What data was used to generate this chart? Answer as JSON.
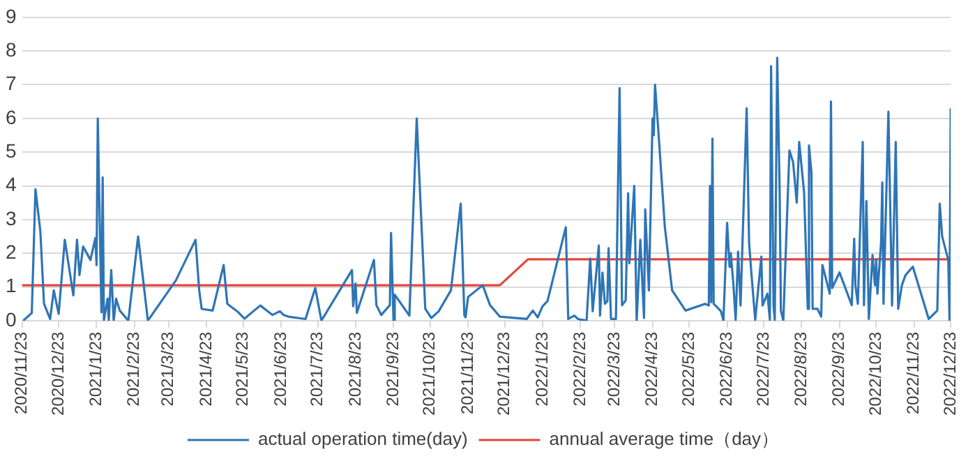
{
  "chart_data": {
    "type": "line",
    "x": [
      "2020-11-24",
      "2020-12-01",
      "2020-12-04",
      "2020-12-08",
      "2020-12-11",
      "2020-12-16",
      "2020-12-19",
      "2020-12-23",
      "2020-12-28",
      "2021-01-04",
      "2021-01-07",
      "2021-01-09",
      "2021-01-12",
      "2021-01-18",
      "2021-01-22",
      "2021-01-23",
      "2021-01-24",
      "2021-01-27",
      "2021-01-28",
      "2021-01-29",
      "2021-02-01",
      "2021-02-02",
      "2021-02-04",
      "2021-02-06",
      "2021-02-08",
      "2021-02-11",
      "2021-02-18",
      "2021-02-26",
      "2021-03-06",
      "2021-03-29",
      "2021-04-14",
      "2021-04-17",
      "2021-04-19",
      "2021-04-28",
      "2021-05-07",
      "2021-05-10",
      "2021-05-19",
      "2021-05-24",
      "2021-06-06",
      "2021-06-16",
      "2021-06-22",
      "2021-06-25",
      "2021-06-29",
      "2021-07-13",
      "2021-07-21",
      "2021-07-26",
      "2021-08-20",
      "2021-08-21",
      "2021-08-23",
      "2021-08-24",
      "2021-09-07",
      "2021-09-09",
      "2021-09-13",
      "2021-09-20",
      "2021-09-21",
      "2021-09-23",
      "2021-09-24",
      "2021-10-06",
      "2021-10-12",
      "2021-10-19",
      "2021-10-24",
      "2021-10-30",
      "2021-11-09",
      "2021-11-17",
      "2021-11-20",
      "2021-11-21",
      "2021-11-23",
      "2021-12-05",
      "2021-12-11",
      "2021-12-19",
      "2022-01-10",
      "2022-01-15",
      "2022-01-19",
      "2022-01-23",
      "2022-01-27",
      "2022-02-11",
      "2022-02-13",
      "2022-02-18",
      "2022-02-21",
      "2022-02-28",
      "2022-03-03",
      "2022-03-05",
      "2022-03-10",
      "2022-03-11",
      "2022-03-13",
      "2022-03-15",
      "2022-03-17",
      "2022-03-18",
      "2022-03-20",
      "2022-03-24",
      "2022-03-27",
      "2022-03-29",
      "2022-04-01",
      "2022-04-03",
      "2022-04-04",
      "2022-04-08",
      "2022-04-10",
      "2022-04-13",
      "2022-04-16",
      "2022-04-17",
      "2022-04-20",
      "2022-04-23",
      "2022-04-24",
      "2022-04-25",
      "2022-04-28",
      "2022-05-03",
      "2022-05-09",
      "2022-05-20",
      "2022-06-05",
      "2022-06-08",
      "2022-06-09",
      "2022-06-10",
      "2022-06-11",
      "2022-06-12",
      "2022-06-18",
      "2022-06-20",
      "2022-06-23",
      "2022-06-25",
      "2022-06-26",
      "2022-06-28",
      "2022-06-30",
      "2022-07-02",
      "2022-07-04",
      "2022-07-09",
      "2022-07-11",
      "2022-07-13",
      "2022-07-16",
      "2022-07-21",
      "2022-07-22",
      "2022-07-26",
      "2022-07-28",
      "2022-07-29",
      "2022-07-31",
      "2022-08-01",
      "2022-08-03",
      "2022-08-05",
      "2022-08-06",
      "2022-08-08",
      "2022-08-13",
      "2022-08-16",
      "2022-08-19",
      "2022-08-21",
      "2022-08-25",
      "2022-08-28",
      "2022-08-29",
      "2022-08-31",
      "2022-09-01",
      "2022-09-05",
      "2022-09-08",
      "2022-09-09",
      "2022-09-15",
      "2022-09-16",
      "2022-09-17",
      "2022-09-23",
      "2022-10-03",
      "2022-10-05",
      "2022-10-06",
      "2022-10-08",
      "2022-10-12",
      "2022-10-13",
      "2022-10-15",
      "2022-10-17",
      "2022-10-20",
      "2022-10-22",
      "2022-10-23",
      "2022-10-24",
      "2022-10-27",
      "2022-10-28",
      "2022-10-29",
      "2022-11-02",
      "2022-11-05",
      "2022-11-08",
      "2022-11-10",
      "2022-11-13",
      "2022-11-16",
      "2022-11-22",
      "2022-12-05",
      "2022-12-12",
      "2022-12-14",
      "2022-12-16",
      "2022-12-21",
      "2022-12-22",
      "2022-12-23"
    ],
    "series": [
      {
        "name": "actual operation time(day)",
        "color": "#2e75b6",
        "values": [
          0,
          0.23,
          3.9,
          2.65,
          0.5,
          0.05,
          0.9,
          0.2,
          2.4,
          0.75,
          2.4,
          1.35,
          2.2,
          1.8,
          2.45,
          1.65,
          6.0,
          0.25,
          4.25,
          0,
          0.65,
          0,
          1.5,
          0,
          0.65,
          0.3,
          0,
          2.5,
          0,
          1.2,
          2.4,
          0.9,
          0.35,
          0.3,
          1.65,
          0.5,
          0.25,
          0.06,
          0.45,
          0.17,
          0.28,
          0.17,
          0.12,
          0.05,
          0.97,
          0,
          1.5,
          0.43,
          1.1,
          0.23,
          1.8,
          0.46,
          0.17,
          0.46,
          2.6,
          0,
          0.77,
          0.15,
          6.0,
          0.35,
          0.08,
          0.28,
          0.9,
          3.47,
          0.15,
          0.1,
          0.7,
          1.05,
          0.46,
          0.12,
          0.05,
          0.3,
          0.1,
          0.43,
          0.58,
          2.77,
          0.05,
          0.15,
          0.05,
          0,
          1.84,
          0.28,
          2.23,
          0.15,
          1.43,
          0.5,
          0.58,
          2.15,
          0.05,
          0.05,
          6.9,
          0.46,
          0.6,
          3.78,
          1.7,
          4.0,
          0,
          2.4,
          0.08,
          3.3,
          0.9,
          6.0,
          5.5,
          7.0,
          5.5,
          2.8,
          0.9,
          0.3,
          0.5,
          0.45,
          4.0,
          0.55,
          5.4,
          0.5,
          0.28,
          0,
          2.9,
          1.6,
          2.0,
          1.15,
          0.02,
          2.05,
          0.45,
          6.3,
          2.3,
          1.35,
          0.02,
          1.9,
          0.45,
          0.8,
          0.02,
          7.55,
          0.45,
          0.02,
          7.8,
          3.85,
          0.3,
          0,
          5.05,
          4.7,
          3.5,
          5.3,
          3.8,
          0.35,
          5.2,
          4.4,
          0.35,
          0.35,
          0.12,
          1.65,
          0.8,
          6.5,
          0.97,
          1.43,
          0.46,
          2.43,
          1.05,
          0.5,
          5.3,
          0.46,
          3.55,
          0.05,
          1.95,
          1.05,
          1.8,
          0.8,
          2.3,
          4.1,
          0.5,
          6.2,
          0.45,
          5.3,
          0.35,
          1.05,
          1.35,
          1.6,
          0.05,
          0.3,
          3.47,
          2.5,
          1.8,
          0.02,
          6.3
        ]
      },
      {
        "name": "annual average time（day）",
        "color": "#e8443a",
        "x": [
          "2020-11-23",
          "2021-12-19",
          "2022-01-11",
          "2022-12-23"
        ],
        "values": [
          1.05,
          1.05,
          1.82,
          1.82
        ]
      }
    ],
    "xlim": [
      "2020-11-23",
      "2022-12-23"
    ],
    "xticks": [
      {
        "value": "2020-11-23",
        "label": "2020/11/23"
      },
      {
        "value": "2020-12-23",
        "label": "2020/12/23"
      },
      {
        "value": "2021-01-23",
        "label": "2021/1/23"
      },
      {
        "value": "2021-02-23",
        "label": "2021/2/23"
      },
      {
        "value": "2021-03-23",
        "label": "2021/3/23"
      },
      {
        "value": "2021-04-23",
        "label": "2021/4/23"
      },
      {
        "value": "2021-05-23",
        "label": "2021/5/23"
      },
      {
        "value": "2021-06-23",
        "label": "2021/6/23"
      },
      {
        "value": "2021-07-23",
        "label": "2021/7/23"
      },
      {
        "value": "2021-08-23",
        "label": "2021/8/23"
      },
      {
        "value": "2021-09-23",
        "label": "2021/9/23"
      },
      {
        "value": "2021-10-23",
        "label": "2021/10/23"
      },
      {
        "value": "2021-11-23",
        "label": "2021/11/23"
      },
      {
        "value": "2021-12-23",
        "label": "2021/12/23"
      },
      {
        "value": "2022-01-23",
        "label": "2022/1/23"
      },
      {
        "value": "2022-02-23",
        "label": "2022/2/23"
      },
      {
        "value": "2022-03-23",
        "label": "2022/3/23"
      },
      {
        "value": "2022-04-23",
        "label": "2022/4/23"
      },
      {
        "value": "2022-05-23",
        "label": "2022/5/23"
      },
      {
        "value": "2022-06-23",
        "label": "2022/6/23"
      },
      {
        "value": "2022-07-23",
        "label": "2022/7/23"
      },
      {
        "value": "2022-08-23",
        "label": "2022/8/23"
      },
      {
        "value": "2022-09-23",
        "label": "2022/9/23"
      },
      {
        "value": "2022-10-23",
        "label": "2022/10/23"
      },
      {
        "value": "2022-11-23",
        "label": "2022/11/23"
      },
      {
        "value": "2022-12-23",
        "label": "2022/12/23"
      }
    ],
    "ylim": [
      0,
      9
    ],
    "yticks": [
      0,
      1,
      2,
      3,
      4,
      5,
      6,
      7,
      8,
      9
    ],
    "grid": "y",
    "legend": "bottom",
    "marker": "none",
    "line_style": "solid"
  }
}
